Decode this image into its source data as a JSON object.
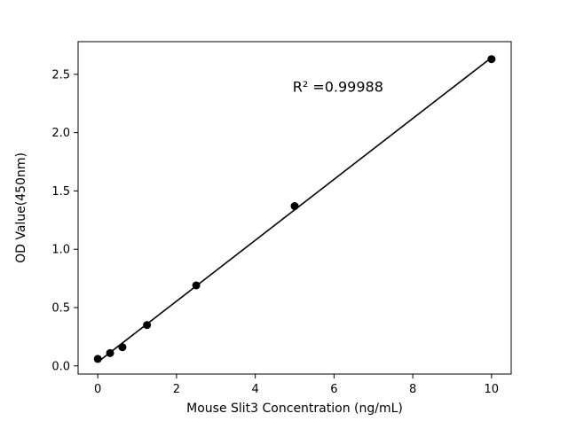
{
  "chart_data": {
    "type": "scatter",
    "title": "",
    "xlabel": "Mouse Slit3 Concentration (ng/mL)",
    "ylabel": "OD Value(450nm)",
    "x": [
      0,
      0.3125,
      0.625,
      1.25,
      2.5,
      5,
      10
    ],
    "y": [
      0.06,
      0.11,
      0.16,
      0.35,
      0.69,
      1.37,
      2.63
    ],
    "fit": {
      "type": "linear",
      "shown": true
    },
    "annotation": {
      "text": "R² =0.99988",
      "x": 6.1,
      "y": 2.35
    },
    "xlim": [
      -0.5,
      10.5
    ],
    "ylim": [
      -0.07,
      2.78
    ],
    "xticks": {
      "values": [
        0,
        2,
        4,
        6,
        8,
        10
      ],
      "labels": [
        "0",
        "2",
        "4",
        "6",
        "8",
        "10"
      ]
    },
    "yticks": {
      "values": [
        0,
        0.5,
        1.0,
        1.5,
        2.0,
        2.5
      ],
      "labels": [
        "0.0",
        "0.5",
        "1.0",
        "1.5",
        "2.0",
        "2.5"
      ]
    },
    "grid": false,
    "legend": "none",
    "point_color": "#000000",
    "line_color": "#000000",
    "background_color": "#ffffff"
  }
}
